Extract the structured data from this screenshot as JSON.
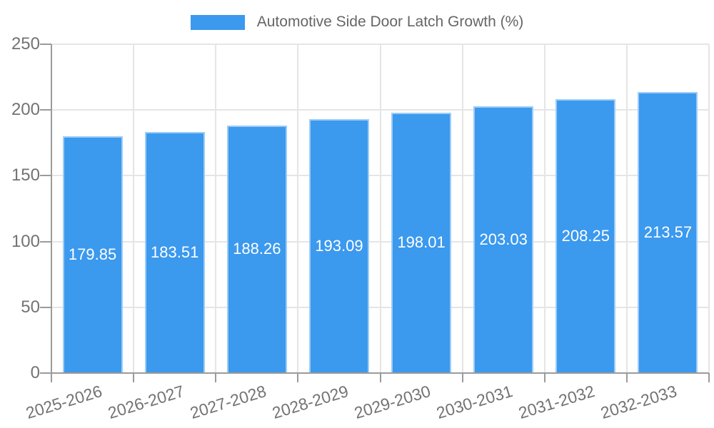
{
  "chart_data": {
    "type": "bar",
    "title": "Automotive Side Door Latch Growth (%)",
    "legend_entries": [
      "Automotive Side Door Latch Growth (%)"
    ],
    "legend_position": "top",
    "categories": [
      "2025-2026",
      "2026-2027",
      "2027-2028",
      "2028-2029",
      "2029-2030",
      "2030-2031",
      "2031-2032",
      "2032-2033"
    ],
    "values": [
      179.85,
      183.51,
      188.26,
      193.09,
      198.01,
      203.03,
      208.25,
      213.57
    ],
    "value_labels": [
      "179.85",
      "183.51",
      "188.26",
      "193.09",
      "198.01",
      "203.03",
      "208.25",
      "213.57"
    ],
    "xlabel": "",
    "ylabel": "",
    "ylim": [
      0,
      250
    ],
    "y_ticks": [
      0,
      50,
      100,
      150,
      200,
      250
    ],
    "grid": true,
    "x_tick_rotation_deg": -17
  },
  "colors": {
    "bar_fill": "#3b99ee",
    "bar_edge": "rgba(255,255,255,0.5)",
    "value_label": "#ffffff",
    "axis_line": "#9b9b9b",
    "gridline": "#e5e5e5",
    "tick_label": "#737373",
    "legend_text": "#666666",
    "background": "#ffffff"
  }
}
